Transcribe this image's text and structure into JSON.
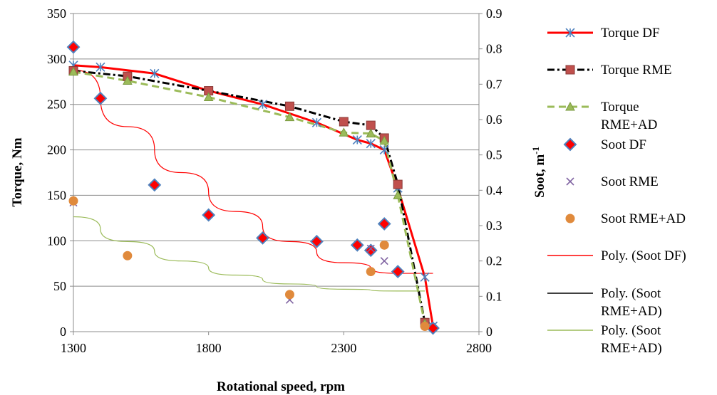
{
  "chart_data": {
    "type": "line",
    "xlabel": "Rotational speed, rpm",
    "ylabel_left": "Torque, Nm",
    "ylabel_right_base": "Soot, m",
    "ylabel_right_sup": "-1",
    "xlim": [
      1300,
      2800
    ],
    "ylim_left": [
      0,
      350
    ],
    "ylim_right": [
      0,
      0.9
    ],
    "grid": true,
    "legend_position": "right",
    "x_ticks": [
      "1300",
      "1800",
      "2300",
      "2800"
    ],
    "y_left_ticks": [
      "0",
      "50",
      "100",
      "150",
      "200",
      "250",
      "300",
      "350"
    ],
    "y_right_ticks": [
      "0",
      "0.1",
      "0.2",
      "0.3",
      "0.4",
      "0.5",
      "0.6",
      "0.7",
      "0.8",
      "0.9"
    ],
    "series": [
      {
        "name": "Torque DF",
        "axis": "left",
        "kind": "line",
        "color": "#ff0000",
        "dash": "",
        "marker": "asterisk",
        "marker_color": "#4f81bd",
        "x": [
          1300,
          1400,
          1600,
          1800,
          2000,
          2200,
          2350,
          2400,
          2450,
          2500,
          2600,
          2630
        ],
        "y": [
          293,
          291,
          284,
          265,
          250,
          230,
          211,
          207,
          200,
          158,
          60,
          6
        ]
      },
      {
        "name": "Torque RME",
        "axis": "left",
        "kind": "line",
        "color": "#000000",
        "dash": "10,4,3,4",
        "marker": "square",
        "marker_color": "#c0504d",
        "x": [
          1300,
          1500,
          1800,
          2100,
          2300,
          2400,
          2450,
          2500,
          2600
        ],
        "y": [
          287,
          281,
          265,
          248,
          231,
          227,
          213,
          162,
          10
        ]
      },
      {
        "name": "Torque RME+AD",
        "axis": "left",
        "kind": "line",
        "color": "#9bbb59",
        "dash": "10,6",
        "marker": "triangle",
        "marker_color": "#9bbb59",
        "x": [
          1300,
          1500,
          1800,
          2100,
          2300,
          2400,
          2450,
          2500,
          2600
        ],
        "y": [
          286,
          276,
          258,
          236,
          219,
          218,
          210,
          150,
          9
        ]
      },
      {
        "name": "Soot DF",
        "axis": "right",
        "kind": "scatter",
        "marker": "diamond",
        "color": "#ff0000",
        "outline": "#4f81bd",
        "x": [
          1300,
          1400,
          1600,
          1800,
          2000,
          2200,
          2350,
          2400,
          2450,
          2500,
          2630
        ],
        "y": [
          0.805,
          0.66,
          0.415,
          0.33,
          0.265,
          0.255,
          0.245,
          0.23,
          0.305,
          0.17,
          0.01
        ]
      },
      {
        "name": "Soot RME",
        "axis": "right",
        "kind": "scatter",
        "marker": "x",
        "color": "#8064a2",
        "x": [
          1300,
          2100,
          2400,
          2450
        ],
        "y": [
          0.365,
          0.09,
          0.235,
          0.2
        ]
      },
      {
        "name": "Soot RME+AD",
        "axis": "right",
        "kind": "scatter",
        "marker": "circle",
        "color": "#e08a3c",
        "x": [
          1300,
          1500,
          2100,
          2400,
          2450,
          2600
        ],
        "y": [
          0.37,
          0.215,
          0.105,
          0.17,
          0.245,
          0.015
        ]
      },
      {
        "name": "Poly. (Soot DF)",
        "axis": "right",
        "kind": "trend",
        "color": "#ff0000",
        "x": [
          1300,
          1500,
          1700,
          1900,
          2100,
          2300,
          2500,
          2630
        ],
        "y": [
          0.74,
          0.58,
          0.45,
          0.34,
          0.255,
          0.195,
          0.165,
          0.165
        ]
      },
      {
        "name": "Poly. (Soot RME+AD)",
        "axis": "right",
        "kind": "trend",
        "color": "#000000",
        "x": [],
        "y": []
      },
      {
        "name": "Poly. (Soot RME+AD)",
        "axis": "right",
        "kind": "trend",
        "color": "#9bbb59",
        "x": [
          1300,
          1500,
          1700,
          1900,
          2100,
          2300,
          2500,
          2600
        ],
        "y": [
          0.325,
          0.255,
          0.2,
          0.16,
          0.135,
          0.12,
          0.115,
          0.115
        ]
      }
    ]
  }
}
